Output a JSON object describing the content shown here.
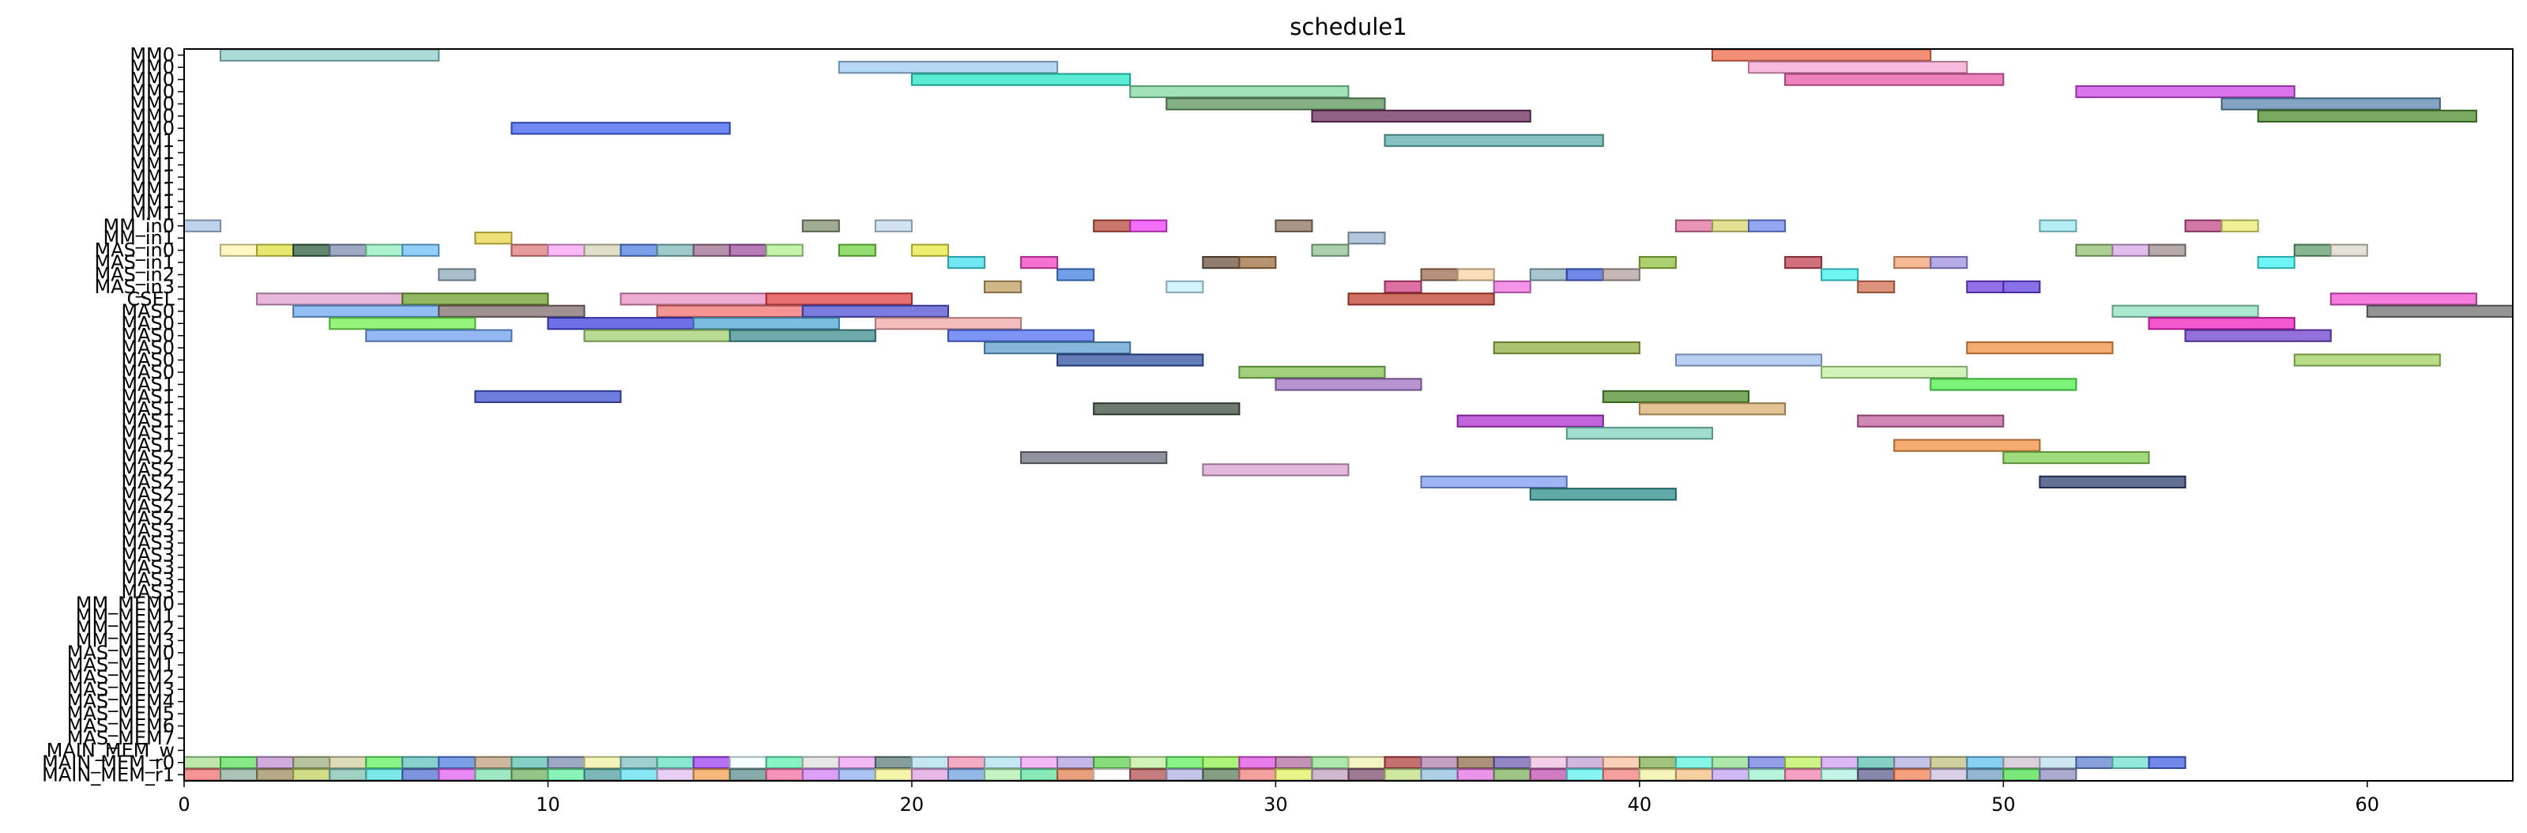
{
  "chart_data": {
    "type": "gantt",
    "title": "schedule1",
    "xlabel": "",
    "ylabel": "",
    "xlim": [
      0,
      64
    ],
    "x_ticks": [
      0,
      10,
      20,
      30,
      40,
      50,
      60
    ],
    "grid": false,
    "legend": "none",
    "rows": [
      "MM0",
      "MM0",
      "MM0",
      "MM0",
      "MM0",
      "MM0",
      "MM0",
      "MM1",
      "MM1",
      "MM1",
      "MM1",
      "MM1",
      "MM1",
      "MM1",
      "MM_in0",
      "MM_in1",
      "MAS_in0",
      "MAS_in1",
      "MAS_in2",
      "MAS_in3",
      "CSEL",
      "MAS0",
      "MAS0",
      "MAS0",
      "MAS0",
      "MAS0",
      "MAS0",
      "MAS1",
      "MAS1",
      "MAS1",
      "MAS1",
      "MAS1",
      "MAS1",
      "MAS2",
      "MAS2",
      "MAS2",
      "MAS2",
      "MAS2",
      "MAS2",
      "MAS3",
      "MAS3",
      "MAS3",
      "MAS3",
      "MAS3",
      "MAS3",
      "MM_MEM0",
      "MM_MEM1",
      "MM_MEM2",
      "MM_MEM3",
      "MAS_MEM0",
      "MAS_MEM1",
      "MAS_MEM2",
      "MAS_MEM3",
      "MAS_MEM4",
      "MAS_MEM5",
      "MAS_MEM6",
      "MAS_MEM7",
      "MAIN_MEM_w",
      "MAIN_MEM_r0",
      "MAIN_MEM_r1"
    ],
    "tasks": [
      {
        "row": 0,
        "start": 1,
        "end": 7,
        "color": "#8fd1cb"
      },
      {
        "row": 0,
        "start": 42,
        "end": 48,
        "color": "#f06a4a"
      },
      {
        "row": 1,
        "start": 18,
        "end": 24,
        "color": "#9ccbf0"
      },
      {
        "row": 1,
        "start": 43,
        "end": 49,
        "color": "#f5a4d0"
      },
      {
        "row": 2,
        "start": 20,
        "end": 26,
        "color": "#25e6c8"
      },
      {
        "row": 2,
        "start": 44,
        "end": 50,
        "color": "#e75aa8"
      },
      {
        "row": 3,
        "start": 26,
        "end": 32,
        "color": "#82d8a2"
      },
      {
        "row": 3,
        "start": 52,
        "end": 58,
        "color": "#cf47e6"
      },
      {
        "row": 4,
        "start": 27,
        "end": 33,
        "color": "#5c965c"
      },
      {
        "row": 4,
        "start": 56,
        "end": 62,
        "color": "#5a86ae"
      },
      {
        "row": 5,
        "start": 31,
        "end": 37,
        "color": "#6e2e5e"
      },
      {
        "row": 5,
        "start": 57,
        "end": 63,
        "color": "#4e8e2e"
      },
      {
        "row": 6,
        "start": 9,
        "end": 15,
        "color": "#4060ee"
      },
      {
        "row": 7,
        "start": 33,
        "end": 39,
        "color": "#5eaeae"
      },
      {
        "row": 14,
        "start": 0,
        "end": 1,
        "color": "#a8c4e8"
      },
      {
        "row": 14,
        "start": 17,
        "end": 18,
        "color": "#7f8f6f"
      },
      {
        "row": 14,
        "start": 19,
        "end": 20,
        "color": "#c4d8ee"
      },
      {
        "row": 14,
        "start": 25,
        "end": 26,
        "color": "#b84a3a"
      },
      {
        "row": 14,
        "start": 26,
        "end": 27,
        "color": "#ee3ef0"
      },
      {
        "row": 14,
        "start": 30,
        "end": 31,
        "color": "#8e7060"
      },
      {
        "row": 14,
        "start": 41,
        "end": 42,
        "color": "#e070a0"
      },
      {
        "row": 14,
        "start": 42,
        "end": 43,
        "color": "#d8d870"
      },
      {
        "row": 14,
        "start": 43,
        "end": 44,
        "color": "#7088ee"
      },
      {
        "row": 14,
        "start": 51,
        "end": 52,
        "color": "#9ae8f0"
      },
      {
        "row": 14,
        "start": 55,
        "end": 56,
        "color": "#c04a88"
      },
      {
        "row": 14,
        "start": 56,
        "end": 57,
        "color": "#e8ee70"
      },
      {
        "row": 15,
        "start": 8,
        "end": 9,
        "color": "#e8d44a"
      },
      {
        "row": 15,
        "start": 32,
        "end": 33,
        "color": "#9ab4d0"
      },
      {
        "row": 16,
        "start": 1,
        "end": 2,
        "color": "#fff4b0"
      },
      {
        "row": 16,
        "start": 2,
        "end": 3,
        "color": "#e0e040"
      },
      {
        "row": 16,
        "start": 3,
        "end": 4,
        "color": "#2e5e3e"
      },
      {
        "row": 16,
        "start": 4,
        "end": 5,
        "color": "#7e8eb0"
      },
      {
        "row": 16,
        "start": 5,
        "end": 6,
        "color": "#90f0c0"
      },
      {
        "row": 16,
        "start": 6,
        "end": 7,
        "color": "#6ec0f8"
      },
      {
        "row": 16,
        "start": 9,
        "end": 10,
        "color": "#e07a7a"
      },
      {
        "row": 16,
        "start": 10,
        "end": 11,
        "color": "#f8a0f0"
      },
      {
        "row": 16,
        "start": 11,
        "end": 12,
        "color": "#d4d4b8"
      },
      {
        "row": 16,
        "start": 12,
        "end": 13,
        "color": "#4e7ee0"
      },
      {
        "row": 16,
        "start": 13,
        "end": 14,
        "color": "#7eb8b8"
      },
      {
        "row": 16,
        "start": 14,
        "end": 15,
        "color": "#9e6e8e"
      },
      {
        "row": 16,
        "start": 15,
        "end": 16,
        "color": "#9e4e9e"
      },
      {
        "row": 16,
        "start": 16,
        "end": 17,
        "color": "#b0f090"
      },
      {
        "row": 16,
        "start": 18,
        "end": 19,
        "color": "#70d040"
      },
      {
        "row": 16,
        "start": 20,
        "end": 21,
        "color": "#e8e840"
      },
      {
        "row": 16,
        "start": 31,
        "end": 32,
        "color": "#90c090"
      },
      {
        "row": 16,
        "start": 52,
        "end": 53,
        "color": "#90c070"
      },
      {
        "row": 16,
        "start": 53,
        "end": 54,
        "color": "#d8a8e8"
      },
      {
        "row": 16,
        "start": 54,
        "end": 55,
        "color": "#9e8e8e"
      },
      {
        "row": 16,
        "start": 58,
        "end": 59,
        "color": "#5e9e6e"
      },
      {
        "row": 16,
        "start": 59,
        "end": 60,
        "color": "#d8d8c8"
      },
      {
        "row": 17,
        "start": 21,
        "end": 22,
        "color": "#40e0f0"
      },
      {
        "row": 17,
        "start": 23,
        "end": 24,
        "color": "#f040c0"
      },
      {
        "row": 17,
        "start": 28,
        "end": 29,
        "color": "#6e5040"
      },
      {
        "row": 17,
        "start": 29,
        "end": 30,
        "color": "#9e6e3e"
      },
      {
        "row": 17,
        "start": 40,
        "end": 41,
        "color": "#90c040"
      },
      {
        "row": 17,
        "start": 44,
        "end": 45,
        "color": "#c04050"
      },
      {
        "row": 17,
        "start": 47,
        "end": 48,
        "color": "#f0a070"
      },
      {
        "row": 17,
        "start": 48,
        "end": 49,
        "color": "#9e8ee0"
      },
      {
        "row": 17,
        "start": 57,
        "end": 58,
        "color": "#40f0f0"
      },
      {
        "row": 18,
        "start": 7,
        "end": 8,
        "color": "#8ea8b8"
      },
      {
        "row": 18,
        "start": 24,
        "end": 25,
        "color": "#4080e0"
      },
      {
        "row": 18,
        "start": 34,
        "end": 35,
        "color": "#9e6e50"
      },
      {
        "row": 18,
        "start": 35,
        "end": 36,
        "color": "#f8d0a0"
      },
      {
        "row": 18,
        "start": 37,
        "end": 38,
        "color": "#8eb0c0"
      },
      {
        "row": 18,
        "start": 38,
        "end": 39,
        "color": "#4060e0"
      },
      {
        "row": 18,
        "start": 39,
        "end": 40,
        "color": "#b0a0a0"
      },
      {
        "row": 18,
        "start": 45,
        "end": 46,
        "color": "#40f0f0"
      },
      {
        "row": 19,
        "start": 22,
        "end": 23,
        "color": "#c09e60"
      },
      {
        "row": 19,
        "start": 27,
        "end": 28,
        "color": "#c0f0f8"
      },
      {
        "row": 19,
        "start": 33,
        "end": 34,
        "color": "#d04080"
      },
      {
        "row": 19,
        "start": 36,
        "end": 37,
        "color": "#f070e0"
      },
      {
        "row": 19,
        "start": 46,
        "end": 47,
        "color": "#d07050"
      },
      {
        "row": 19,
        "start": 49,
        "end": 50,
        "color": "#7040e0"
      },
      {
        "row": 19,
        "start": 50,
        "end": 51,
        "color": "#6040e0"
      },
      {
        "row": 20,
        "start": 2,
        "end": 6,
        "color": "#e0a0d0"
      },
      {
        "row": 20,
        "start": 6,
        "end": 10,
        "color": "#6e9e2e"
      },
      {
        "row": 20,
        "start": 12,
        "end": 16,
        "color": "#e890c0"
      },
      {
        "row": 20,
        "start": 16,
        "end": 20,
        "color": "#e04040"
      },
      {
        "row": 20,
        "start": 32,
        "end": 36,
        "color": "#c04030"
      },
      {
        "row": 20,
        "start": 59,
        "end": 63,
        "color": "#f050d0"
      },
      {
        "row": 21,
        "start": 3,
        "end": 7,
        "color": "#6ea8f0"
      },
      {
        "row": 21,
        "start": 7,
        "end": 11,
        "color": "#806e6e"
      },
      {
        "row": 21,
        "start": 13,
        "end": 17,
        "color": "#f07070"
      },
      {
        "row": 21,
        "start": 17,
        "end": 21,
        "color": "#5050d0"
      },
      {
        "row": 21,
        "start": 53,
        "end": 57,
        "color": "#90e0c0"
      },
      {
        "row": 21,
        "start": 60,
        "end": 64,
        "color": "#707070"
      },
      {
        "row": 22,
        "start": 4,
        "end": 8,
        "color": "#70f050"
      },
      {
        "row": 22,
        "start": 10,
        "end": 14,
        "color": "#4040e0"
      },
      {
        "row": 22,
        "start": 14,
        "end": 18,
        "color": "#50a8d8"
      },
      {
        "row": 22,
        "start": 19,
        "end": 23,
        "color": "#f0a8a8"
      },
      {
        "row": 22,
        "start": 54,
        "end": 58,
        "color": "#f020c0"
      },
      {
        "row": 23,
        "start": 5,
        "end": 9,
        "color": "#70a0f0"
      },
      {
        "row": 23,
        "start": 11,
        "end": 15,
        "color": "#a0d070"
      },
      {
        "row": 23,
        "start": 15,
        "end": 19,
        "color": "#3e8e8e"
      },
      {
        "row": 23,
        "start": 21,
        "end": 25,
        "color": "#5070f0"
      },
      {
        "row": 23,
        "start": 55,
        "end": 59,
        "color": "#7040d0"
      },
      {
        "row": 24,
        "start": 22,
        "end": 26,
        "color": "#5e9ed0"
      },
      {
        "row": 24,
        "start": 36,
        "end": 40,
        "color": "#90b040"
      },
      {
        "row": 24,
        "start": 49,
        "end": 53,
        "color": "#f09040"
      },
      {
        "row": 25,
        "start": 24,
        "end": 28,
        "color": "#3050a0"
      },
      {
        "row": 25,
        "start": 41,
        "end": 45,
        "color": "#a0c0f0"
      },
      {
        "row": 25,
        "start": 58,
        "end": 62,
        "color": "#a0d060"
      },
      {
        "row": 26,
        "start": 29,
        "end": 33,
        "color": "#80c050"
      },
      {
        "row": 26,
        "start": 45,
        "end": 49,
        "color": "#c0f0a0"
      },
      {
        "row": 27,
        "start": 30,
        "end": 34,
        "color": "#a070c0"
      },
      {
        "row": 27,
        "start": 48,
        "end": 52,
        "color": "#50f050"
      },
      {
        "row": 28,
        "start": 8,
        "end": 12,
        "color": "#4050d0"
      },
      {
        "row": 28,
        "start": 39,
        "end": 43,
        "color": "#4e8e2e"
      },
      {
        "row": 29,
        "start": 25,
        "end": 29,
        "color": "#3e4e3e"
      },
      {
        "row": 29,
        "start": 40,
        "end": 44,
        "color": "#d8b070"
      },
      {
        "row": 30,
        "start": 35,
        "end": 39,
        "color": "#b030d0"
      },
      {
        "row": 30,
        "start": 46,
        "end": 50,
        "color": "#c05e9e"
      },
      {
        "row": 31,
        "start": 38,
        "end": 42,
        "color": "#80d0c0"
      },
      {
        "row": 32,
        "start": 47,
        "end": 51,
        "color": "#f09040"
      },
      {
        "row": 33,
        "start": 23,
        "end": 27,
        "color": "#6e6e7e"
      },
      {
        "row": 33,
        "start": 50,
        "end": 54,
        "color": "#80d050"
      },
      {
        "row": 34,
        "start": 28,
        "end": 32,
        "color": "#d8a0d0"
      },
      {
        "row": 35,
        "start": 34,
        "end": 38,
        "color": "#7e9ef0"
      },
      {
        "row": 35,
        "start": 51,
        "end": 55,
        "color": "#2e3e6e"
      },
      {
        "row": 36,
        "start": 37,
        "end": 41,
        "color": "#2e8e8e"
      }
    ],
    "mem_rows": {
      "w_row": 57,
      "r0_row": 58,
      "r1_row": 59,
      "r0_colors": [
        "#a8e090",
        "#60e060",
        "#c090d0",
        "#a0b080",
        "#d0d0a0",
        "#60f060",
        "#60c0c0",
        "#5080e0",
        "#c0a080",
        "#60c0b0",
        "#7e8eb0",
        "#f0f0a0",
        "#80c0c0",
        "#60e0c0",
        "#a040f0",
        "#f0ffff",
        "#60f0b0",
        "#e0e0e0",
        "#f0a0f0",
        "#5e7e7e",
        "#b0e0f0",
        "#f090b0",
        "#b0e0f0",
        "#f0a0f0",
        "#b0a0e0",
        "#60d050",
        "#c0f0a0",
        "#60f060",
        "#90f050",
        "#e050e0",
        "#b06e9e",
        "#90e090",
        "#f0f0b0",
        "#b04040",
        "#b080b0",
        "#8e6e4e",
        "#6e5eb0",
        "#f0c0e0",
        "#c0a0d0",
        "#f8c0a0",
        "#80b050",
        "#60f0e0",
        "#90e090",
        "#6e7ee0",
        "#c0f060",
        "#d0a0f0",
        "#60c0b0",
        "#b0b0e0",
        "#c0c080",
        "#60c0f0",
        "#d0c0d0",
        "#c0e0f0",
        "#5e80d0",
        "#70e0d0",
        "#4060e0"
      ],
      "r1_colors": [
        "#f07070",
        "#90b0a0",
        "#9e8e5e",
        "#c0d060",
        "#80c0b0",
        "#50e0e0",
        "#5070d0",
        "#e060f0",
        "#80e0b0",
        "#70b060",
        "#60f0a0",
        "#50a0a0",
        "#60e0f0",
        "#e0c0f0",
        "#f0a050",
        "#5e8e8e",
        "#f070a0",
        "#d080f0",
        "#90b0f0",
        "#f0f090",
        "#e0a0e0",
        "#70a0e0",
        "#b0f0b0",
        "#60e0a0",
        "#e08050",
        "#ffffff",
        "#b05050",
        "#b0b0e0",
        "#5e7e5e",
        "#f08080",
        "#e0f060",
        "#c0a0c0",
        "#7e4e6e",
        "#c0e080",
        "#90c0e0",
        "#e070e0",
        "#7eb05e",
        "#c050b0",
        "#60f0f0",
        "#f08080",
        "#f0f0a0",
        "#f0c080",
        "#c0a0f0",
        "#a0f0d0",
        "#f080b0",
        "#b0f0e0",
        "#5e5e8e",
        "#f08050",
        "#d0c0e0",
        "#6e9ec0",
        "#50e050",
        "#8e8ec0"
      ]
    }
  }
}
